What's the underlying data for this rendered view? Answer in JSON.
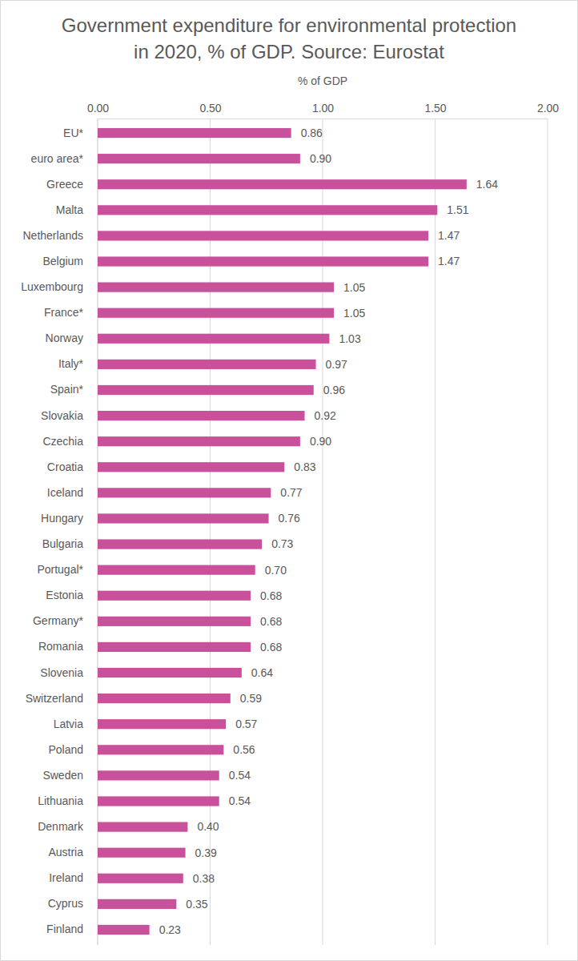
{
  "chart_data": {
    "type": "bar",
    "orientation": "horizontal",
    "title": "Government expenditure for environmental protection in 2020, % of GDP. Source: Eurostat",
    "xlabel": "% of GDP",
    "categories": [
      "EU*",
      "euro area*",
      "Greece",
      "Malta",
      "Netherlands",
      "Belgium",
      "Luxembourg",
      "France*",
      "Norway",
      "Italy*",
      "Spain*",
      "Slovakia",
      "Czechia",
      "Croatia",
      "Iceland",
      "Hungary",
      "Bulgaria",
      "Portugal*",
      "Estonia",
      "Germany*",
      "Romania",
      "Slovenia",
      "Switzerland",
      "Latvia",
      "Poland",
      "Sweden",
      "Lithuania",
      "Denmark",
      "Austria",
      "Ireland",
      "Cyprus",
      "Finland"
    ],
    "values": [
      0.86,
      0.9,
      1.64,
      1.51,
      1.47,
      1.47,
      1.05,
      1.05,
      1.03,
      0.97,
      0.96,
      0.92,
      0.9,
      0.83,
      0.77,
      0.76,
      0.73,
      0.7,
      0.68,
      0.68,
      0.68,
      0.64,
      0.59,
      0.57,
      0.56,
      0.54,
      0.54,
      0.4,
      0.39,
      0.38,
      0.35,
      0.23
    ],
    "value_labels": [
      "0.86",
      "0.90",
      "1.64",
      "1.51",
      "1.47",
      "1.47",
      "1.05",
      "1.05",
      "1.03",
      "0.97",
      "0.96",
      "0.92",
      "0.90",
      "0.83",
      "0.77",
      "0.76",
      "0.73",
      "0.70",
      "0.68",
      "0.68",
      "0.68",
      "0.64",
      "0.59",
      "0.57",
      "0.56",
      "0.54",
      "0.54",
      "0.40",
      "0.39",
      "0.38",
      "0.35",
      "0.23"
    ],
    "color": "#c9519b",
    "data_labels": true,
    "grid": true,
    "xlim": [
      0,
      2
    ],
    "xticks": [
      {
        "value": 0,
        "label": "0.00"
      },
      {
        "value": 0.5,
        "label": "0.50"
      },
      {
        "value": 1,
        "label": "1.00"
      },
      {
        "value": 1.5,
        "label": "1.50"
      },
      {
        "value": 2,
        "label": "2.00"
      }
    ]
  }
}
